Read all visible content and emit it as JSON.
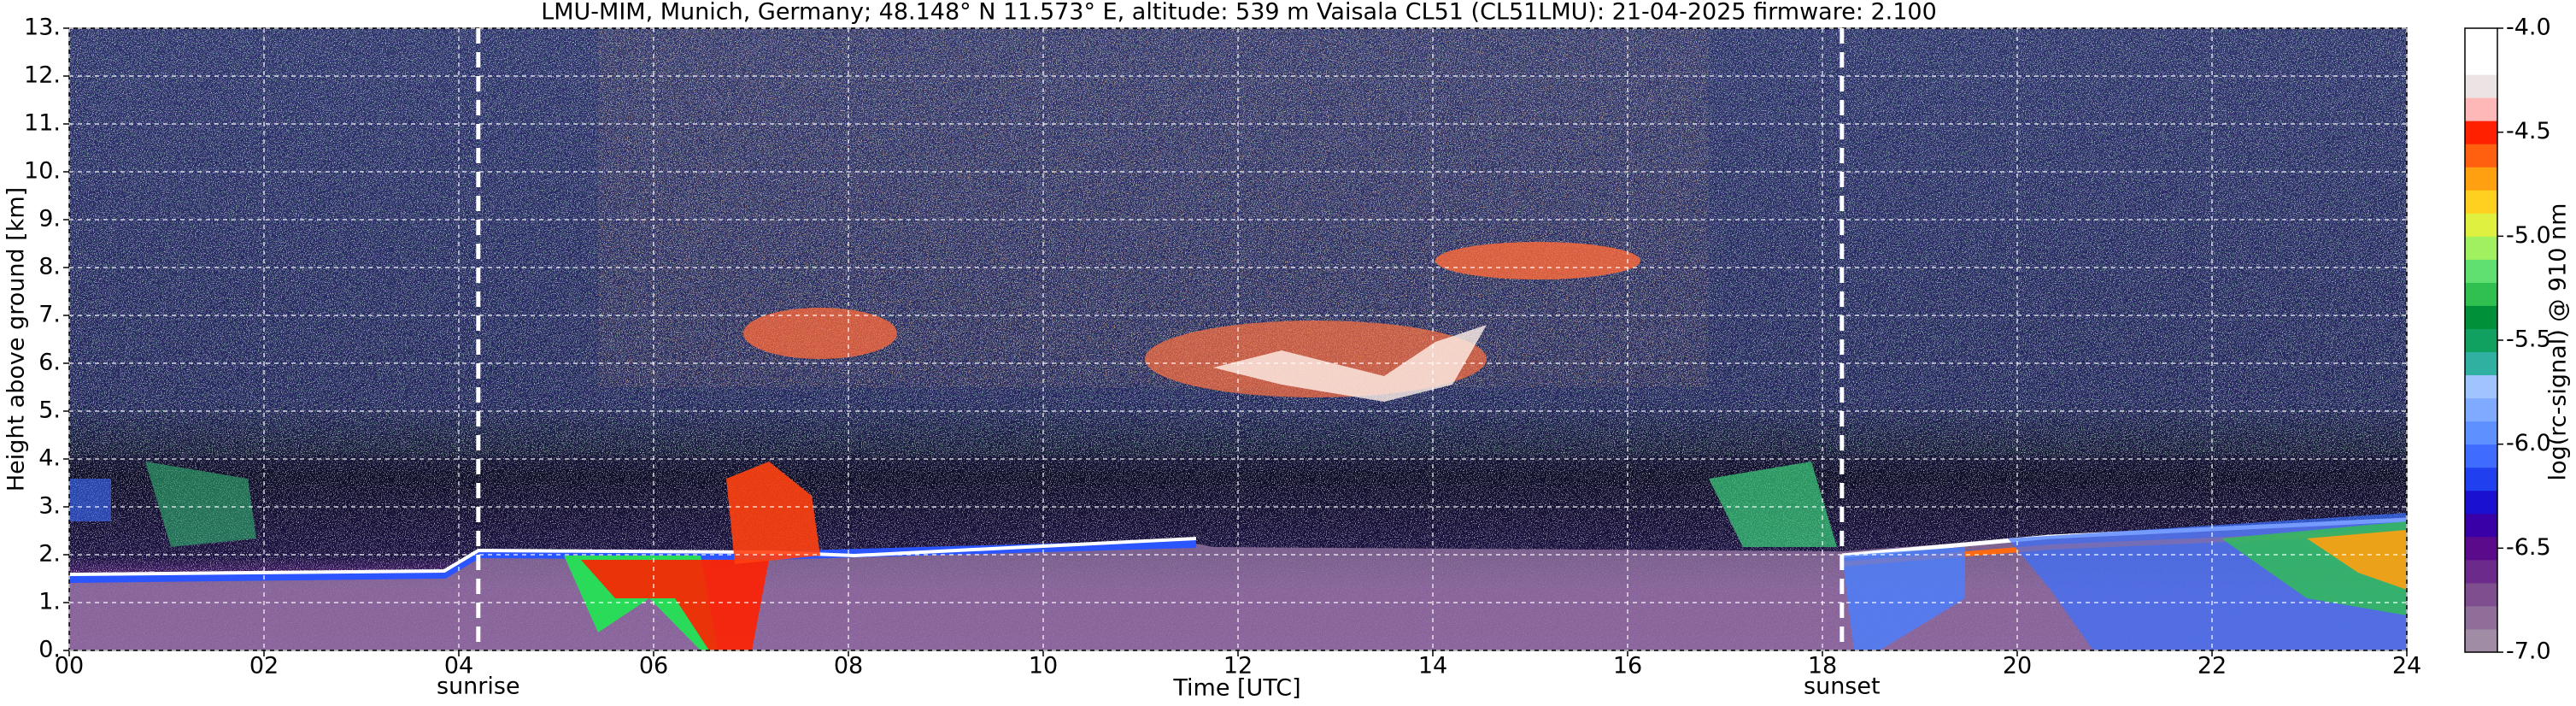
{
  "chart_data": {
    "type": "heatmap",
    "title": "LMU-MIM, Munich, Germany; 48.148° N 11.573° E, altitude: 539 m    Vaisala CL51 (CL51LMU): 21-04-2025    firmware: 2.100",
    "xlabel": "Time [UTC]",
    "ylabel": "Height above ground [km]",
    "xlim": [
      0,
      24
    ],
    "xticks": [
      {
        "value": 0,
        "label": "00"
      },
      {
        "value": 2,
        "label": "02"
      },
      {
        "value": 4,
        "label": "04"
      },
      {
        "value": 6,
        "label": "06"
      },
      {
        "value": 8,
        "label": "08"
      },
      10,
      12,
      14,
      16,
      18,
      20,
      22,
      24
    ],
    "ylim": [
      0,
      13
    ],
    "yticks": [
      {
        "value": 0,
        "label": "0."
      },
      {
        "value": 1,
        "label": "1."
      },
      {
        "value": 2,
        "label": "2."
      },
      {
        "value": 3,
        "label": "3."
      },
      {
        "value": 4,
        "label": "4."
      },
      {
        "value": 5,
        "label": "5."
      },
      {
        "value": 6,
        "label": "6."
      },
      {
        "value": 7,
        "label": "7."
      },
      {
        "value": 8,
        "label": "8."
      },
      {
        "value": 9,
        "label": "9."
      },
      {
        "value": 10,
        "label": "10."
      },
      {
        "value": 11,
        "label": "11."
      },
      {
        "value": 12,
        "label": "12."
      },
      {
        "value": 13,
        "label": "13."
      }
    ],
    "grid": true,
    "annotations": [
      {
        "x": 4.2,
        "text": "sunrise"
      },
      {
        "x": 18.2,
        "text": "sunset"
      }
    ],
    "colorbar": {
      "label": "log(rc-signal) @ 910 nm",
      "lim": [
        -7,
        -4
      ],
      "ticks": [
        {
          "value": -7,
          "label": "-7.0"
        },
        {
          "value": -6.5,
          "label": "-6.5"
        },
        {
          "value": -6,
          "label": "-6.0"
        },
        {
          "value": -5.5,
          "label": "-5.5"
        },
        {
          "value": -5,
          "label": "-5.0"
        },
        {
          "value": -4.5,
          "label": "-4.5"
        },
        {
          "value": -4,
          "label": "-4.0"
        }
      ],
      "colors": [
        "#a08ca4",
        "#8f6f9a",
        "#7e4e8f",
        "#6c2a8a",
        "#5c0a8c",
        "#3a00a8",
        "#1a10d0",
        "#2040f0",
        "#3f6cff",
        "#5f90ff",
        "#80aaff",
        "#a0c4ff",
        "#30b0a0",
        "#10a060",
        "#00903a",
        "#30c050",
        "#60e070",
        "#a0f060",
        "#e0f040",
        "#ffd020",
        "#ffa010",
        "#ff6010",
        "#ff2000",
        "#ffb8b8",
        "#ece4e4",
        "#ffffff",
        "#ffffff"
      ]
    }
  }
}
